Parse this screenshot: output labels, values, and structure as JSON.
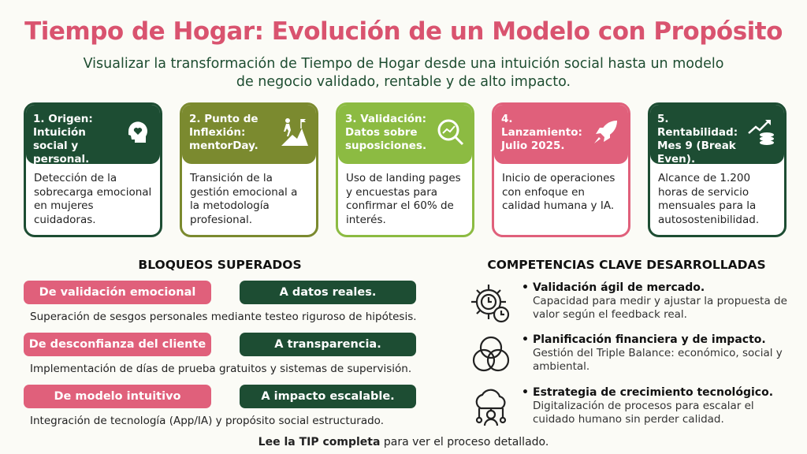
{
  "title": "Tiempo de Hogar: Evolución de un Modelo con Propósito",
  "subtitle": "Visualizar la transformación de Tiempo de Hogar desde una intuición social hasta un modelo de negocio validado, rentable y de alto impacto.",
  "colors": {
    "dark_green": "#1d4d33",
    "olive": "#7b8a2f",
    "light_green": "#8cbb42",
    "pink": "#e0607b",
    "title_pink": "#d9536f"
  },
  "stages": [
    {
      "title": "1. Origen: Intuición social y personal.",
      "body": "Detección de la sobrecarga emocional en mujeres cuidadoras.",
      "icon": "head-heart-icon",
      "color": "#1d4d33"
    },
    {
      "title": "2. Punto de Inflexión: mentorDay.",
      "body": "Transición de la gestión emocional a la metodología profesional.",
      "icon": "hiker-mountain-icon",
      "color": "#7b8a2f"
    },
    {
      "title": "3. Validación: Datos sobre suposiciones.",
      "body": "Uso de landing pages y encuestas para confirmar el 60% de interés.",
      "icon": "magnifier-chart-icon",
      "color": "#8cbb42"
    },
    {
      "title": "4. Lanzamiento: Julio 2025.",
      "body": "Inicio de operaciones con enfoque en calidad humana y IA.",
      "icon": "rocket-icon",
      "color": "#e0607b"
    },
    {
      "title": "5. Rentabilidad: Mes 9 (Break Even).",
      "body": "Alcance de 1.200 horas de servicio mensuales para la autosostenibilidad.",
      "icon": "coins-growth-icon",
      "color": "#1d4d33"
    }
  ],
  "blocks": {
    "title": "BLOQUEOS SUPERADOS",
    "rows": [
      {
        "from": "De validación emocional",
        "to": "A datos reales.",
        "desc": "Superación de sesgos personales mediante testeo riguroso de hipótesis."
      },
      {
        "from": "De desconfianza del cliente",
        "to": "A transparencia.",
        "desc": "Implementación de días de prueba gratuitos y sistemas de supervisión."
      },
      {
        "from": "De modelo intuitivo",
        "to": "A impacto escalable.",
        "desc": "Integración de tecnología (App/IA) y propósito social estructurado."
      }
    ]
  },
  "competencies": {
    "title": "COMPETENCIAS CLAVE DESARROLLADAS",
    "items": [
      {
        "title": "Validación ágil de mercado.",
        "desc": "Capacidad para medir y ajustar la propuesta de valor según el feedback real.",
        "icon": "gear-clock-icon"
      },
      {
        "title": "Planificación financiera y de impacto.",
        "desc": "Gestión del Triple Balance: económico, social y ambiental.",
        "icon": "venn-circles-icon"
      },
      {
        "title": "Estrategia de crecimiento tecnológico.",
        "desc": "Digitalización de procesos para escalar el cuidado humano sin perder calidad.",
        "icon": "cloud-network-icon"
      }
    ]
  },
  "footer": {
    "bold": "Lee la TIP completa",
    "rest": " para ver el proceso detallado."
  }
}
